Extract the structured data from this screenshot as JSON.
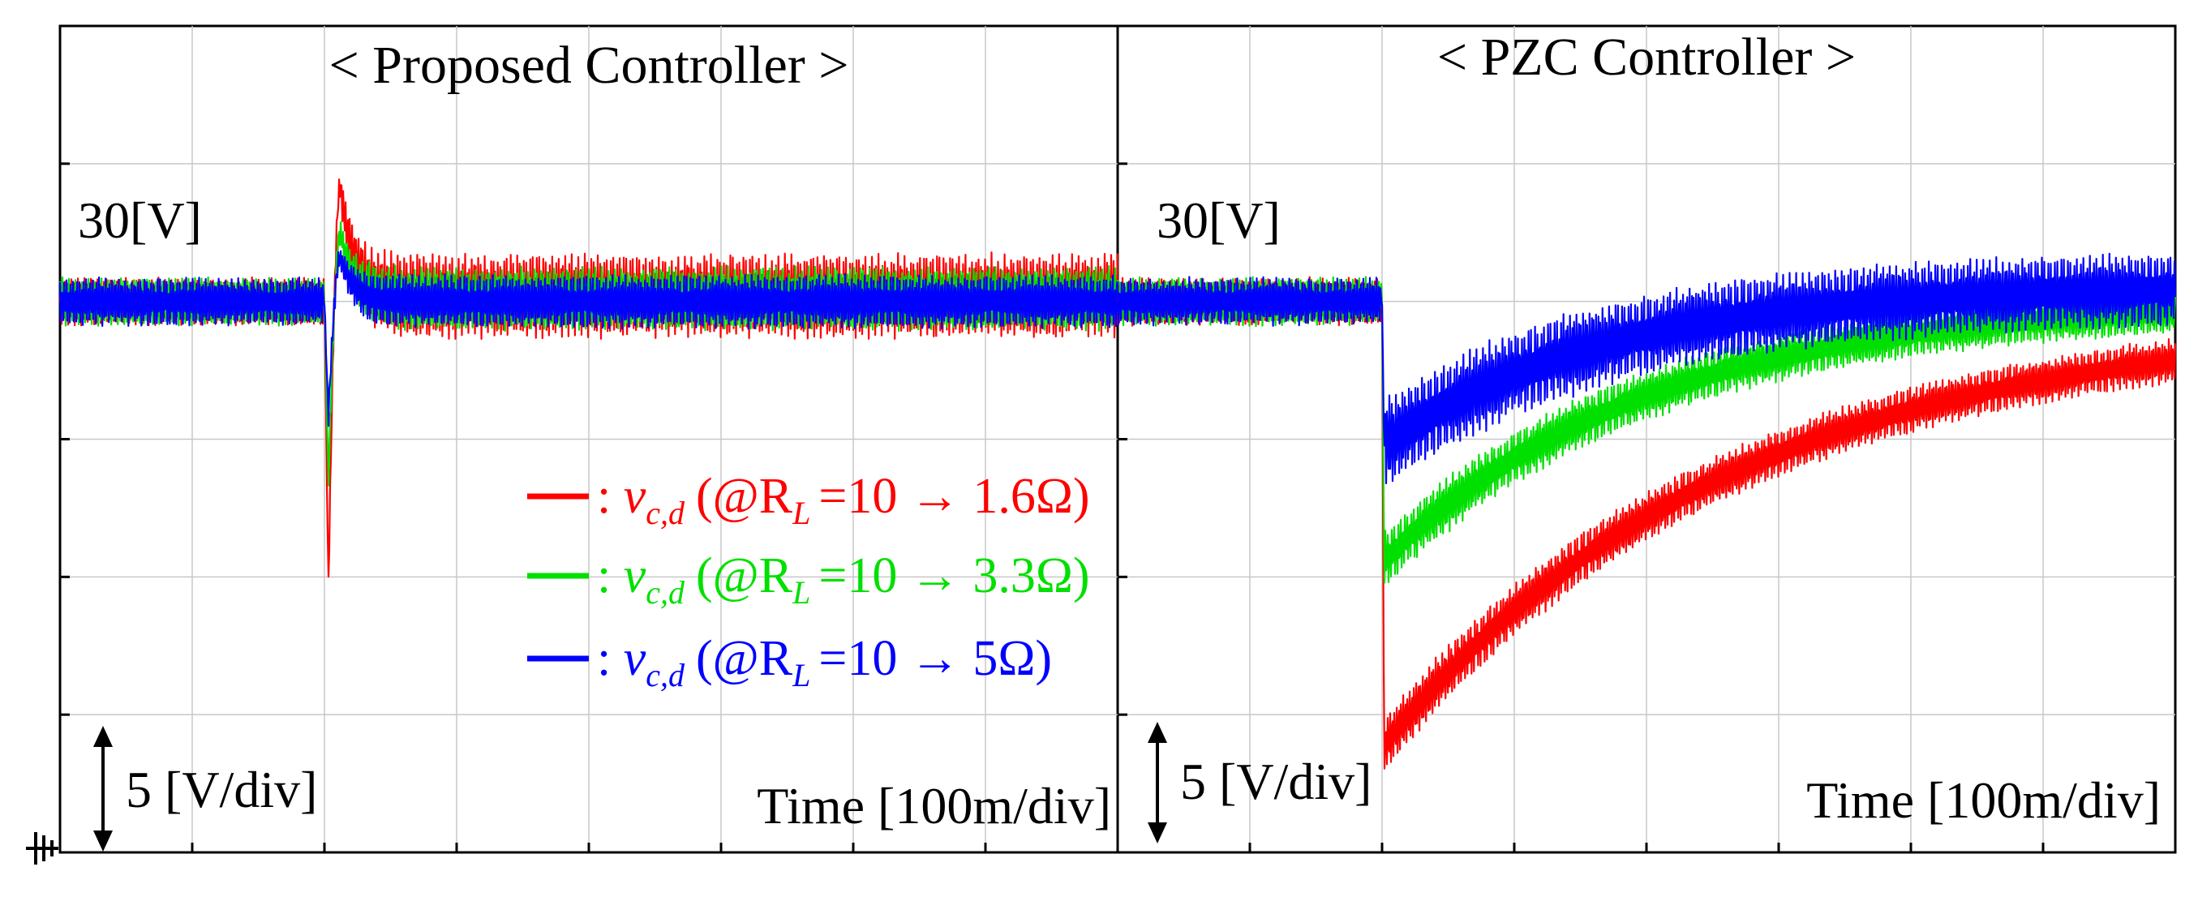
{
  "panels": [
    {
      "title": "< Proposed Controller >",
      "level_label": "30[V]",
      "scale_label": "5 [V/div]",
      "time_label": "Time [100m/div]"
    },
    {
      "title": "< PZC Controller >",
      "level_label": "30[V]",
      "scale_label": "5 [V/div]",
      "time_label": "Time [100m/div]"
    }
  ],
  "legend": [
    {
      "color": "#ff0000",
      "symbol": "v",
      "subscript": "c,d",
      "condition": "(@R",
      "cond_sub": "L",
      "change": "=10 → 1.6Ω)"
    },
    {
      "color": "#00e000",
      "symbol": "v",
      "subscript": "c,d",
      "condition": "(@R",
      "cond_sub": "L",
      "change": "=10 → 3.3Ω)"
    },
    {
      "color": "#0000ff",
      "symbol": "v",
      "subscript": "c,d",
      "condition": "(@R",
      "cond_sub": "L",
      "change": "=10 → 5Ω)"
    }
  ],
  "chart_data": [
    {
      "type": "line",
      "title": "< Proposed Controller >",
      "xlabel": "Time [100m/div]",
      "ylabel": "5 [V/div]",
      "xlim": [
        0,
        800
      ],
      "x_unit": "ms",
      "ylim": [
        10,
        40
      ],
      "y_unit": "V",
      "reference_level": 30,
      "load_step_time_ms": 200,
      "series": [
        {
          "name": "v_c,d (@R_L = 10 → 1.6Ω)",
          "color": "#ff0000",
          "pre_mean": 30,
          "pre_ripple_pp": 1.8,
          "undershoot_min": 19.6,
          "overshoot_max": 34.2,
          "post_mean": 30.2,
          "post_ripple_pp": 3.2
        },
        {
          "name": "v_c,d (@R_L = 10 → 3.3Ω)",
          "color": "#00e000",
          "pre_mean": 30,
          "pre_ripple_pp": 1.8,
          "undershoot_min": 23.4,
          "overshoot_max": 32.5,
          "post_mean": 30.1,
          "post_ripple_pp": 2.4
        },
        {
          "name": "v_c,d (@R_L = 10 → 5Ω)",
          "color": "#0000ff",
          "pre_mean": 30,
          "pre_ripple_pp": 1.8,
          "undershoot_min": 25.8,
          "overshoot_max": 31.6,
          "post_mean": 30,
          "post_ripple_pp": 2.0
        }
      ]
    },
    {
      "type": "line",
      "title": "< PZC Controller >",
      "xlabel": "Time [100m/div]",
      "ylabel": "5 [V/div]",
      "xlim": [
        0,
        800
      ],
      "x_unit": "ms",
      "ylim": [
        10,
        40
      ],
      "y_unit": "V",
      "reference_level": 30,
      "load_step_time_ms": 200,
      "series": [
        {
          "name": "v_c,d (@R_L = 10 → 1.6Ω)",
          "color": "#ff0000",
          "pre_mean": 30,
          "undershoot_min": 13.9,
          "final_mean": 29.4,
          "final_ripple_pp": 1.6,
          "time_constant_ms": 260
        },
        {
          "name": "v_c,d (@R_L = 10 → 3.3Ω)",
          "color": "#00e000",
          "pre_mean": 30,
          "undershoot_min": 20.6,
          "final_mean": 30.1,
          "final_ripple_pp": 1.6,
          "time_constant_ms": 200
        },
        {
          "name": "v_c,d (@R_L = 10 → 5Ω)",
          "color": "#0000ff",
          "pre_mean": 30,
          "undershoot_min": 24.8,
          "final_mean": 30.6,
          "final_ripple_pp": 2.6,
          "time_constant_ms": 170
        }
      ]
    }
  ]
}
